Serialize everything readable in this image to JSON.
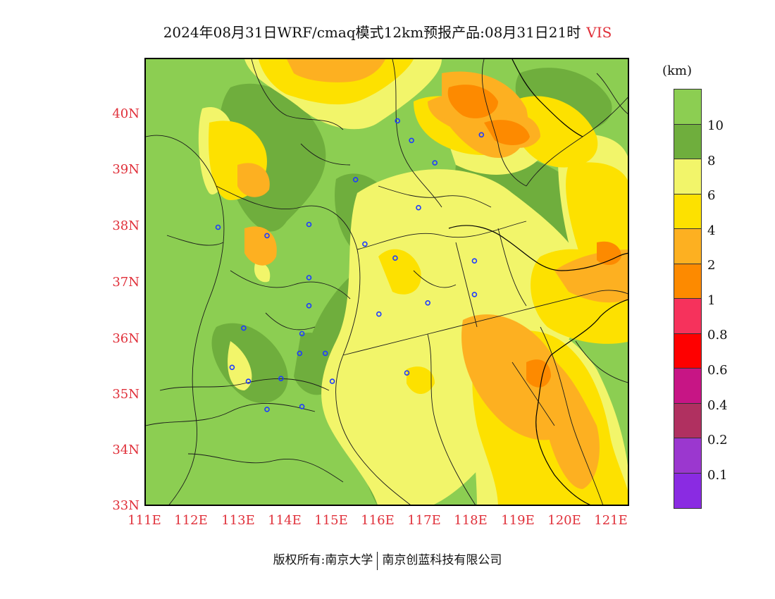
{
  "title": {
    "text": "2024年08月31日WRF/cmaq模式12km预报产品:08月31日21时",
    "variable": "VIS"
  },
  "map": {
    "lat_ticks": [
      "40N",
      "39N",
      "38N",
      "37N",
      "36N",
      "35N",
      "34N",
      "33N"
    ],
    "lon_ticks": [
      "111E",
      "112E",
      "113E",
      "114E",
      "115E",
      "116E",
      "117E",
      "118E",
      "119E",
      "120E",
      "121E"
    ],
    "extent": {
      "lon_min": 111,
      "lon_max": 121.4,
      "lat_min": 33,
      "lat_max": 41
    },
    "stations": [
      [
        116.4,
        39.9
      ],
      [
        116.7,
        39.55
      ],
      [
        117.2,
        39.15
      ],
      [
        118.2,
        39.65
      ],
      [
        115.5,
        38.85
      ],
      [
        116.85,
        38.35
      ],
      [
        112.55,
        38.0
      ],
      [
        113.6,
        37.85
      ],
      [
        114.5,
        38.05
      ],
      [
        115.7,
        37.7
      ],
      [
        116.35,
        37.45
      ],
      [
        118.05,
        37.4
      ],
      [
        114.5,
        37.1
      ],
      [
        114.5,
        36.6
      ],
      [
        116.0,
        36.45
      ],
      [
        117.05,
        36.65
      ],
      [
        118.05,
        36.8
      ],
      [
        113.1,
        36.2
      ],
      [
        114.35,
        36.1
      ],
      [
        114.3,
        35.75
      ],
      [
        114.85,
        35.75
      ],
      [
        112.85,
        35.5
      ],
      [
        113.2,
        35.25
      ],
      [
        113.9,
        35.3
      ],
      [
        115.0,
        35.25
      ],
      [
        116.6,
        35.4
      ],
      [
        114.35,
        34.8
      ],
      [
        113.6,
        34.75
      ]
    ]
  },
  "colorbar": {
    "unit": "(km)",
    "labels": [
      "10",
      "8",
      "6",
      "4",
      "2",
      "1",
      "0.8",
      "0.6",
      "0.4",
      "0.2",
      "0.1"
    ],
    "colors": [
      "#8cce52",
      "#6fae3d",
      "#f2f56a",
      "#fde100",
      "#fdb021",
      "#fd8a00",
      "#f6325c",
      "#fe0000",
      "#c71585",
      "#b03060",
      "#9b37cf",
      "#8a2be2"
    ]
  },
  "footer": {
    "left": "版权所有:南京大学",
    "right": "南京创蓝科技有限公司"
  }
}
